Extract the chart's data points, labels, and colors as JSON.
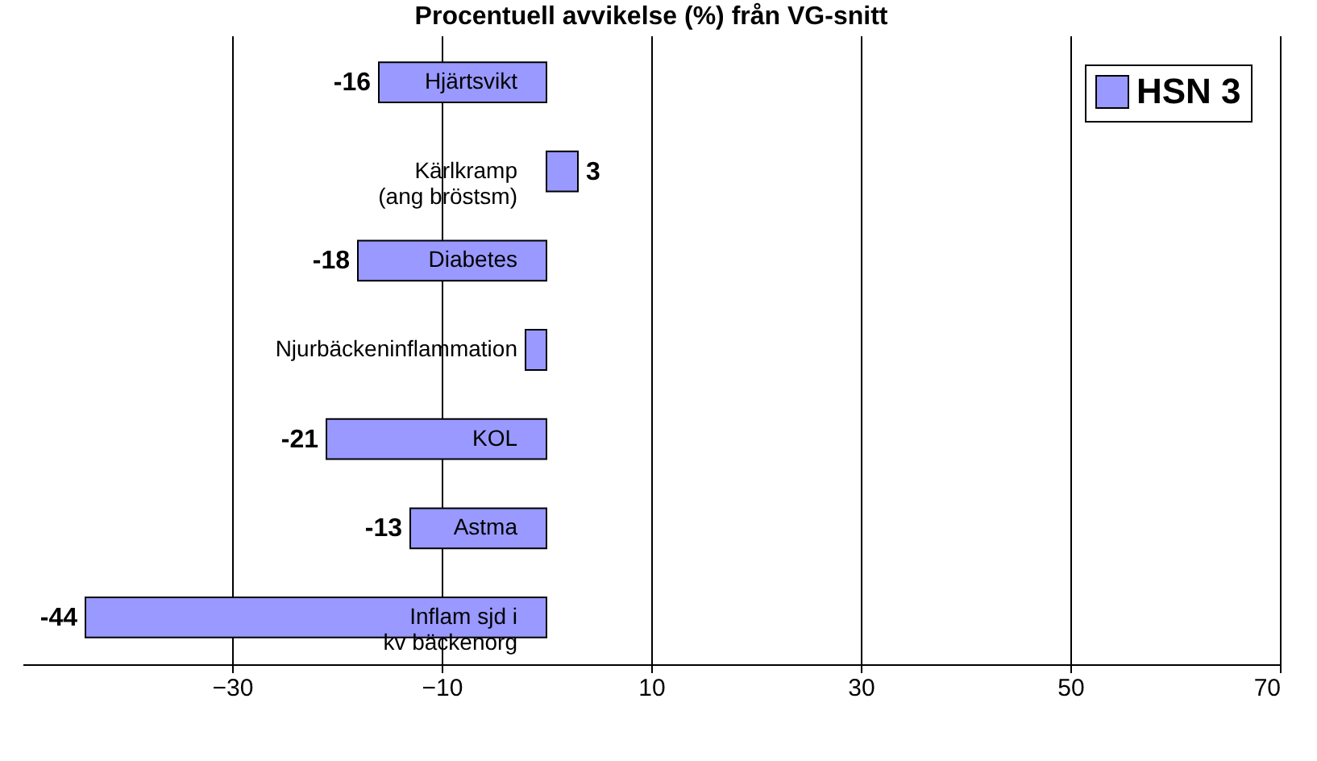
{
  "chart_data": {
    "type": "bar",
    "orientation": "horizontal",
    "title": "Procentuell avvikelse (%) från VG-snitt",
    "categories": [
      "Hjärtsvikt",
      "Kärlkramp (ang bröstsm)",
      "Diabetes",
      "Njurbäckeninflammation",
      "KOL",
      "Astma",
      "Inflam sjd i kv bäckenorg"
    ],
    "series": [
      {
        "name": "HSN 3",
        "color": "#9999ff",
        "values": [
          -16,
          3,
          -18,
          -2,
          -21,
          -13,
          -44
        ],
        "value_labels": [
          "-16",
          "3",
          "-18",
          null,
          "-21",
          "-13",
          "-44"
        ]
      }
    ],
    "xlim": [
      -50,
      70
    ],
    "xticks": [
      -30,
      -10,
      10,
      30,
      50,
      70
    ],
    "grid": "x",
    "legend": "top right"
  }
}
